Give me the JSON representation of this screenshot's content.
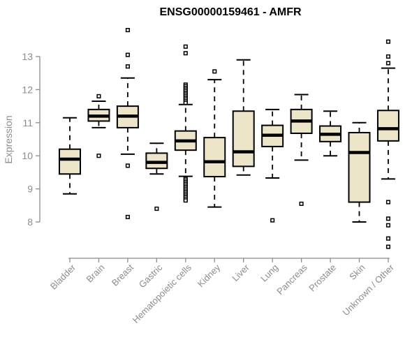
{
  "chart_data": {
    "type": "boxplot",
    "title": "ENSG00000159461 - AMFR",
    "ylabel": "Expression",
    "xlabel": "",
    "yticks": [
      8,
      9,
      10,
      11,
      12,
      13
    ],
    "ylim": [
      7.0,
      14.2
    ],
    "grid": false,
    "legend": "none",
    "colors": {
      "box_fill": "#ece5c8",
      "box_border": "#000000",
      "median": "#000000",
      "whisker": "#000000",
      "axis": "#8c8c8c",
      "tick_label": "#8c8c8c",
      "title": "#000000"
    },
    "categories": [
      "Bladder",
      "Brain",
      "Breast",
      "Gastric",
      "Hematopoietic cells",
      "Kidney",
      "Liver",
      "Lung",
      "Pancreas",
      "Prostate",
      "Skin",
      "Unknown / Other"
    ],
    "boxes": [
      {
        "category": "Bladder",
        "whisker_low": 8.85,
        "q1": 9.45,
        "median": 9.9,
        "q3": 10.2,
        "whisker_high": 11.15,
        "outliers": []
      },
      {
        "category": "Brain",
        "whisker_low": 10.85,
        "q1": 11.05,
        "median": 11.2,
        "q3": 11.4,
        "whisker_high": 11.65,
        "outliers": [
          11.8,
          10.0
        ]
      },
      {
        "category": "Breast",
        "whisker_low": 10.05,
        "q1": 10.85,
        "median": 11.2,
        "q3": 11.5,
        "whisker_high": 12.35,
        "outliers": [
          13.8,
          13.05,
          12.7,
          9.7,
          8.15
        ]
      },
      {
        "category": "Gastric",
        "whisker_low": 9.45,
        "q1": 9.62,
        "median": 9.8,
        "q3": 10.08,
        "whisker_high": 10.38,
        "outliers": [
          8.4
        ]
      },
      {
        "category": "Hematopoietic cells",
        "whisker_low": 9.38,
        "q1": 10.17,
        "median": 10.45,
        "q3": 10.75,
        "whisker_high": 11.55,
        "outliers": [
          13.3,
          13.1,
          12.15,
          12.1,
          12.05,
          12.0,
          11.95,
          11.9,
          11.85,
          11.8,
          11.75,
          11.7,
          11.65,
          11.6,
          9.3,
          9.25,
          9.2,
          9.15,
          9.1,
          9.05,
          9.0,
          8.95,
          8.9,
          8.85,
          8.8,
          8.75,
          8.7,
          8.65
        ]
      },
      {
        "category": "Kidney",
        "whisker_low": 8.45,
        "q1": 9.37,
        "median": 9.82,
        "q3": 10.55,
        "whisker_high": 12.3,
        "outliers": [
          12.55
        ]
      },
      {
        "category": "Liver",
        "whisker_low": 9.42,
        "q1": 9.68,
        "median": 10.12,
        "q3": 11.35,
        "whisker_high": 12.9,
        "outliers": []
      },
      {
        "category": "Lung",
        "whisker_low": 9.33,
        "q1": 10.28,
        "median": 10.62,
        "q3": 10.92,
        "whisker_high": 11.4,
        "outliers": [
          8.05
        ]
      },
      {
        "category": "Pancreas",
        "whisker_low": 9.87,
        "q1": 10.68,
        "median": 11.05,
        "q3": 11.4,
        "whisker_high": 11.85,
        "outliers": [
          8.55
        ]
      },
      {
        "category": "Prostate",
        "whisker_low": 10.0,
        "q1": 10.43,
        "median": 10.65,
        "q3": 10.9,
        "whisker_high": 11.35,
        "outliers": []
      },
      {
        "category": "Skin",
        "whisker_low": 8.0,
        "q1": 8.6,
        "median": 10.1,
        "q3": 10.7,
        "whisker_high": 11.0,
        "outliers": []
      },
      {
        "category": "Unknown / Other",
        "whisker_low": 9.3,
        "q1": 10.45,
        "median": 10.82,
        "q3": 11.37,
        "whisker_high": 12.65,
        "outliers": [
          13.45,
          13.0,
          12.8,
          8.6,
          8.1,
          7.9,
          7.5,
          7.25
        ]
      }
    ]
  }
}
